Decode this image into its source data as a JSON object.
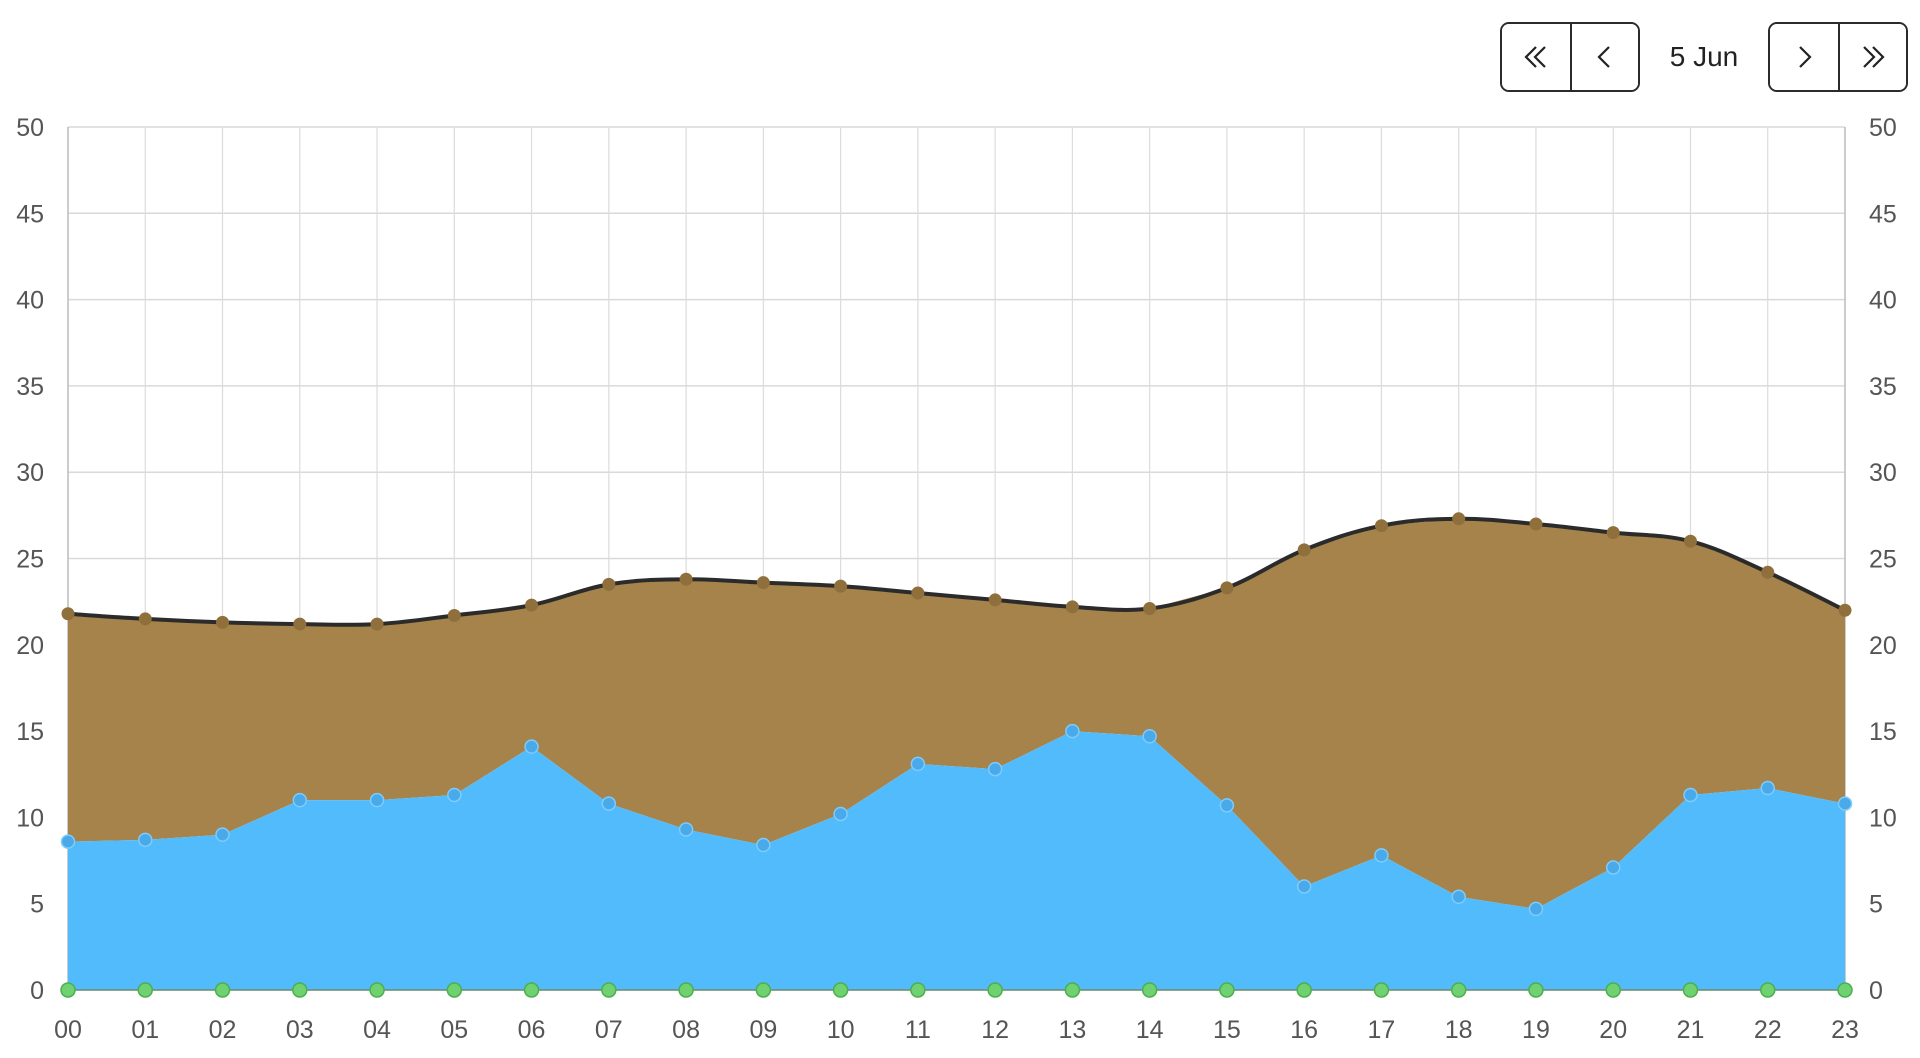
{
  "navigation": {
    "first_icon": "double-chevron-left-icon",
    "prev_icon": "chevron-left-icon",
    "date": "5 Jun",
    "next_icon": "chevron-right-icon",
    "last_icon": "double-chevron-right-icon"
  },
  "chart_data": {
    "type": "area",
    "categories": [
      "00",
      "01",
      "02",
      "03",
      "04",
      "05",
      "06",
      "07",
      "08",
      "09",
      "10",
      "11",
      "12",
      "13",
      "14",
      "15",
      "16",
      "17",
      "18",
      "19",
      "20",
      "21",
      "22",
      "23"
    ],
    "ylim": [
      0,
      50
    ],
    "yticks": [
      0,
      5,
      10,
      15,
      20,
      25,
      30,
      35,
      40,
      45,
      50
    ],
    "grid": true,
    "series": [
      {
        "key": "top",
        "color": "#a5834a",
        "line_color": "#2b2b2b",
        "values": [
          21.8,
          21.5,
          21.3,
          21.2,
          21.2,
          21.7,
          22.3,
          23.5,
          23.8,
          23.6,
          23.4,
          23.0,
          22.6,
          22.2,
          22.1,
          23.3,
          25.5,
          26.9,
          27.3,
          27.0,
          26.5,
          26.0,
          24.2,
          22.0
        ]
      },
      {
        "key": "middle",
        "color": "#52bbfb",
        "marker_color": "#4aa9e8",
        "values": [
          8.6,
          8.7,
          9.0,
          11.0,
          11.0,
          11.3,
          14.1,
          10.8,
          9.3,
          8.4,
          10.2,
          13.1,
          12.8,
          15.0,
          14.7,
          10.7,
          6.0,
          7.8,
          5.4,
          4.7,
          7.1,
          11.3,
          11.7,
          10.8
        ]
      },
      {
        "key": "bottom",
        "color": "#6fd16f",
        "values": [
          0,
          0,
          0,
          0,
          0,
          0,
          0,
          0,
          0,
          0,
          0,
          0,
          0,
          0,
          0,
          0,
          0,
          0,
          0,
          0,
          0,
          0,
          0,
          0
        ]
      }
    ]
  }
}
